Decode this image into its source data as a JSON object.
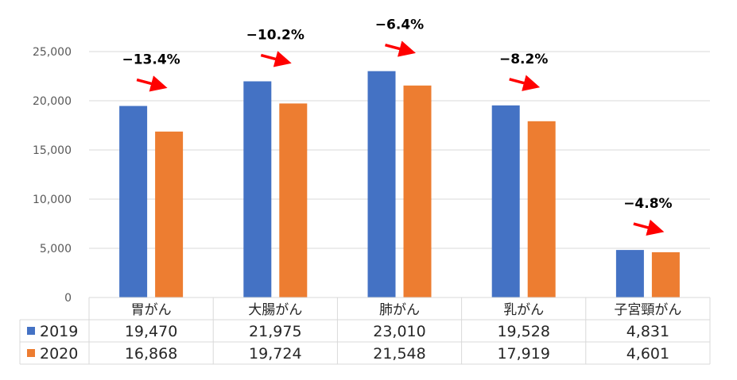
{
  "chart_data": {
    "type": "bar",
    "categories": [
      "胃がん",
      "大腸がん",
      "肺がん",
      "乳がん",
      "子宮頸がん"
    ],
    "series": [
      {
        "name": "2019",
        "values": [
          19470,
          21975,
          23010,
          19528,
          4831
        ],
        "color": "#4472C4"
      },
      {
        "name": "2020",
        "values": [
          16868,
          19724,
          21548,
          17919,
          4601
        ],
        "color": "#ED7D31"
      }
    ],
    "value_labels": [
      [
        "19,470",
        "21,975",
        "23,010",
        "19,528",
        "4,831"
      ],
      [
        "16,868",
        "19,724",
        "21,548",
        "17,919",
        "4,601"
      ]
    ],
    "ylim": [
      0,
      25000
    ],
    "yticks": [
      0,
      5000,
      10000,
      15000,
      20000,
      25000
    ],
    "ytick_labels": [
      "0",
      "5,000",
      "10,000",
      "15,000",
      "20,000",
      "25,000"
    ],
    "annotations": [
      "−13.4%",
      "−10.2%",
      "−6.4%",
      "−8.2%",
      "−4.8%"
    ],
    "annotation_arrow_color": "#FF0000",
    "grid": true,
    "legend": "data-table",
    "title": "",
    "xlabel": "",
    "ylabel": ""
  }
}
